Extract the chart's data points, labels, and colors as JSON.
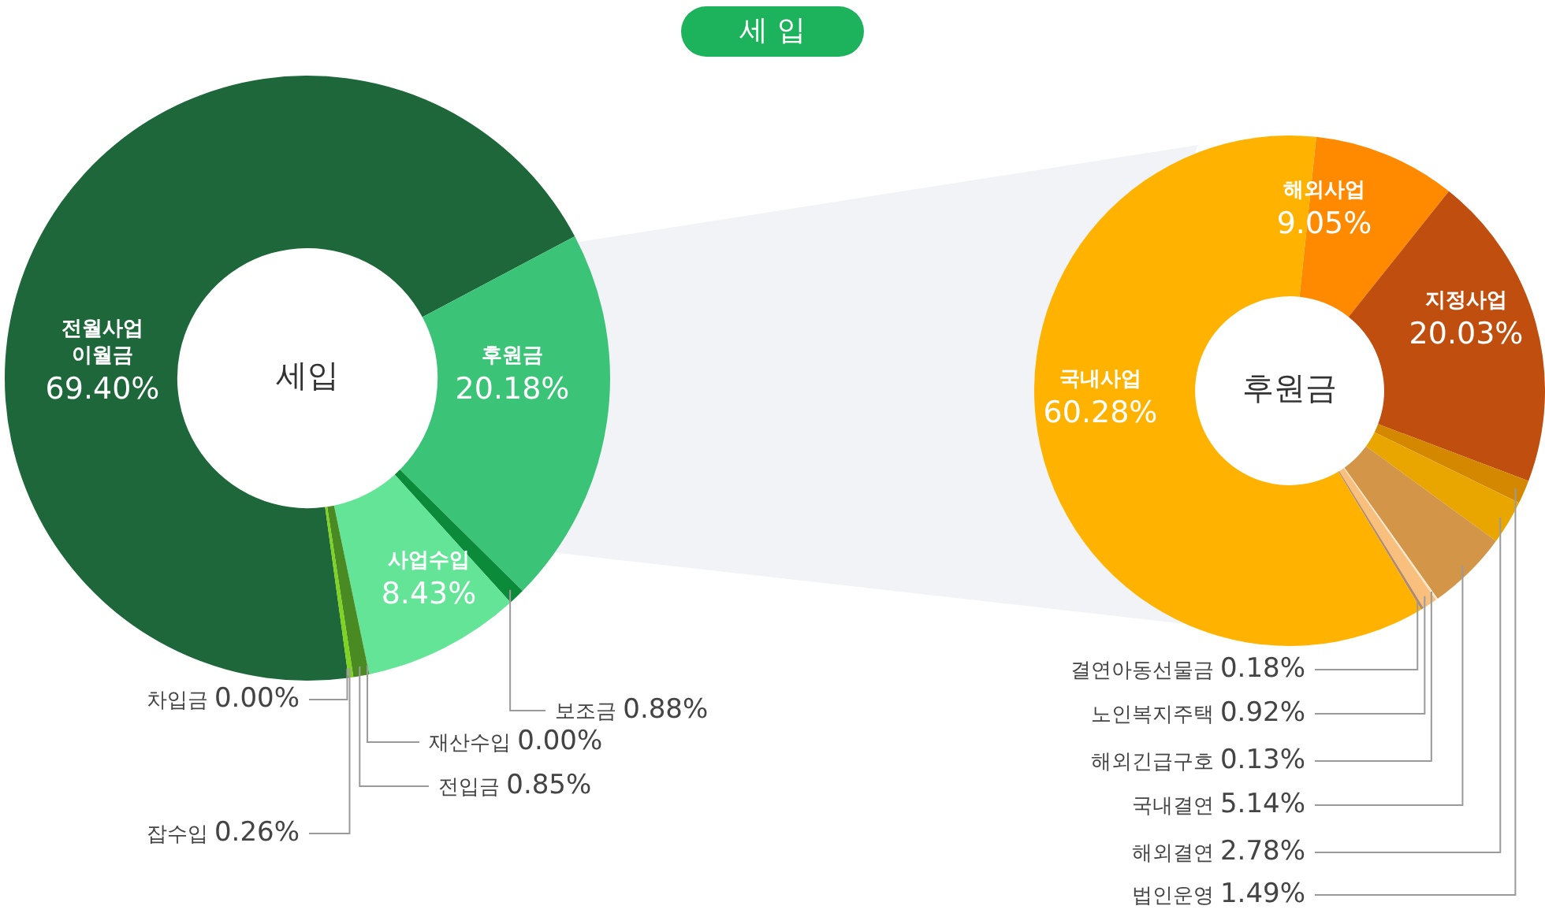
{
  "chart_data": [
    {
      "type": "donut",
      "title": "세 입",
      "annotations": [
        "세입"
      ],
      "categories": [
        "전월사업 이월금",
        "후원금",
        "보조금",
        "사업수입",
        "재산수입",
        "전입금",
        "잡수입",
        "차입금"
      ],
      "values": [
        69.4,
        20.18,
        0.88,
        8.43,
        0.0,
        0.85,
        0.26,
        0.0
      ],
      "colors": [
        "#1e673b",
        "#3bc478",
        "#0b8a3a",
        "#63e497",
        "#3fbf8a",
        "#4a8a22",
        "#7ed321",
        "#2fae6a"
      ],
      "value_labels": [
        "69.40%",
        "20.18%",
        "0.88%",
        "8.43%",
        "0.00%",
        "0.85%",
        "0.26%",
        "0.00%"
      ]
    },
    {
      "type": "donut",
      "annotations": [
        "후원금"
      ],
      "categories": [
        "해외사업",
        "지정사업",
        "법인운영",
        "해외결연",
        "국내결연",
        "해외긴급구호",
        "노인복지주택",
        "결연아동선물금",
        "국내사업"
      ],
      "values": [
        9.05,
        20.03,
        1.49,
        2.78,
        5.14,
        0.13,
        0.92,
        0.18,
        60.28
      ],
      "colors": [
        "#ff8a00",
        "#c04f0f",
        "#d48800",
        "#eaa600",
        "#d39548",
        "#fbe7cf",
        "#f8c07c",
        "#b38a6c",
        "#ffb300"
      ],
      "value_labels": [
        "9.05%",
        "20.03%",
        "1.49%",
        "2.78%",
        "5.14%",
        "0.13%",
        "0.92%",
        "0.18%",
        "60.28%"
      ]
    }
  ]
}
